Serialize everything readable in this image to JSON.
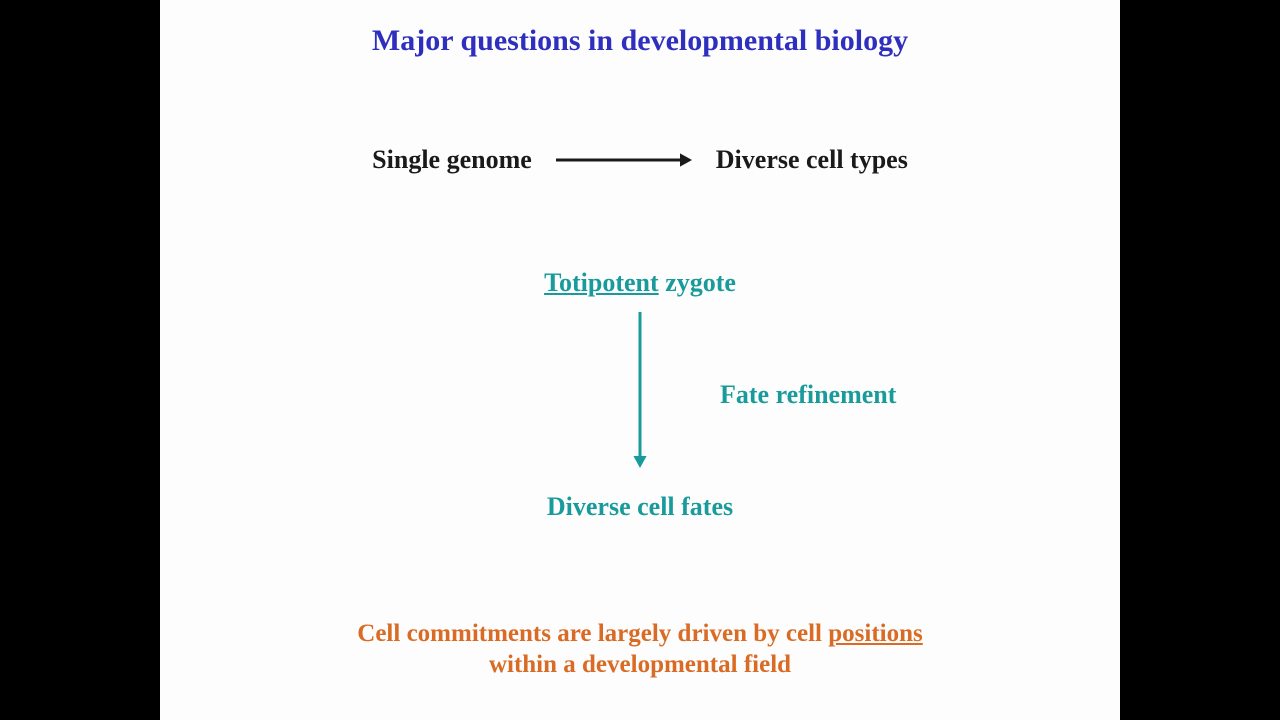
{
  "colors": {
    "page_bg": "#000000",
    "slide_bg": "#fdfdfd",
    "title": "#2e2fbf",
    "body_black": "#1a1a1a",
    "teal": "#1a9b9b",
    "orange": "#d96b24",
    "arrow_black": "#1a1a1a",
    "arrow_teal": "#1a9b9b"
  },
  "fonts": {
    "title_size": 30,
    "body_size": 26,
    "teal_size": 26,
    "bottom_size": 25
  },
  "title": "Major questions in developmental biology",
  "row1": {
    "left": "Single genome",
    "right": "Diverse cell types",
    "arrow": {
      "length": 140,
      "stroke_width": 3,
      "head_size": 12
    }
  },
  "zygote": {
    "underlined": "Totipotent",
    "rest": " zygote"
  },
  "vertical_arrow": {
    "length": 160,
    "stroke_width": 3,
    "head_size": 12
  },
  "refinement": "Fate refinement",
  "fates": "Diverse cell fates",
  "bottom": {
    "pre": "Cell commitments are largely driven by cell ",
    "underlined": "positions",
    "line2": "within a developmental field"
  }
}
